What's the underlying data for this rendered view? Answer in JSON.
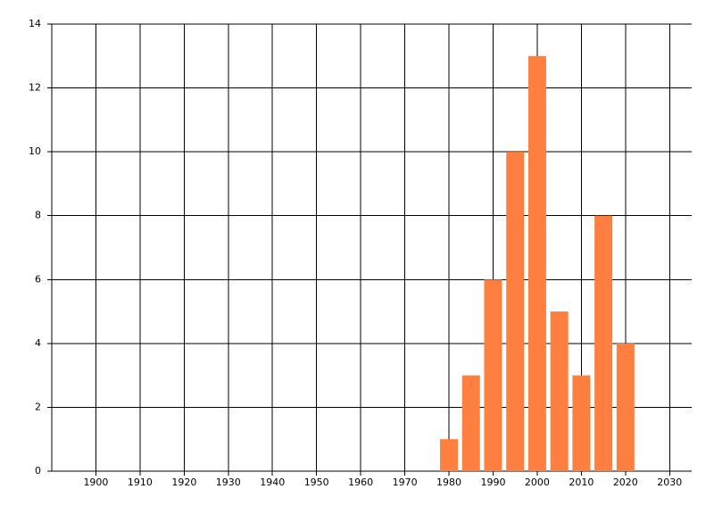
{
  "chart_data": {
    "type": "bar",
    "x": [
      1980,
      1985,
      1990,
      1995,
      2000,
      2005,
      2010,
      2015,
      2020
    ],
    "values": [
      1,
      3,
      6,
      10,
      13,
      5,
      3,
      8,
      4
    ],
    "color": "#ff7f40",
    "xlim": [
      1890,
      2035
    ],
    "xticks": [
      1900,
      1910,
      1920,
      1930,
      1940,
      1950,
      1960,
      1970,
      1980,
      1990,
      2000,
      2010,
      2020,
      2030
    ],
    "ylim": [
      0,
      14
    ],
    "yticks": [
      0,
      2,
      4,
      6,
      8,
      10,
      12,
      14
    ],
    "grid": true
  }
}
